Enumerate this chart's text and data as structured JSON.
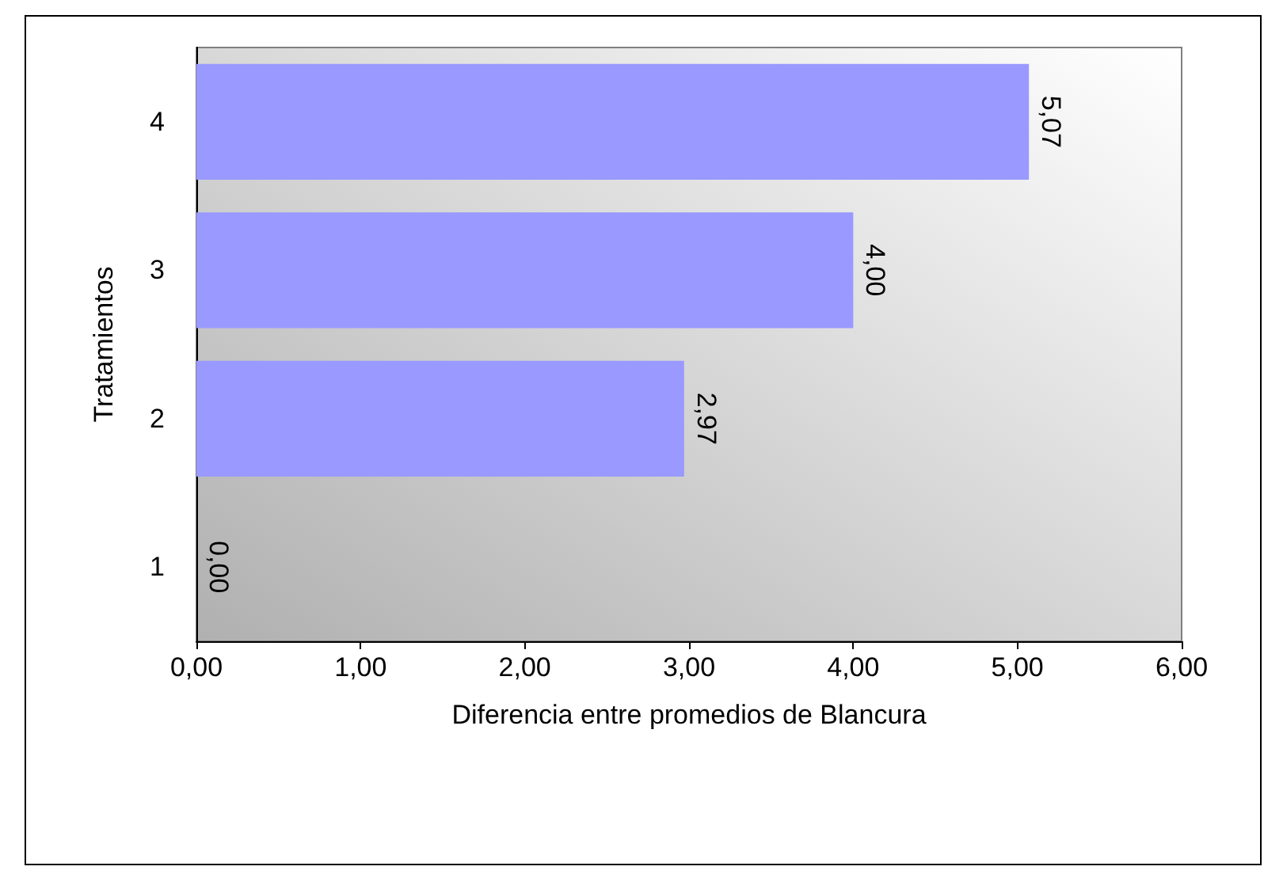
{
  "chart_data": {
    "type": "bar",
    "orientation": "horizontal",
    "xlabel": "Diferencia entre promedios de Blancura",
    "ylabel": "Tratamientos",
    "categories": [
      "4",
      "3",
      "2",
      "1"
    ],
    "values": [
      5.07,
      4.0,
      2.97,
      0.0
    ],
    "value_labels": [
      "5,07",
      "4,00",
      "2,97",
      "0,00"
    ],
    "color": "#9999ff",
    "xlim": [
      0,
      6
    ],
    "xticks": [
      {
        "value": 0,
        "label": "0,00"
      },
      {
        "value": 1,
        "label": "1,00"
      },
      {
        "value": 2,
        "label": "2,00"
      },
      {
        "value": 3,
        "label": "3,00"
      },
      {
        "value": 4,
        "label": "4,00"
      },
      {
        "value": 5,
        "label": "5,00"
      },
      {
        "value": 6,
        "label": "6,00"
      }
    ],
    "grid": false
  }
}
